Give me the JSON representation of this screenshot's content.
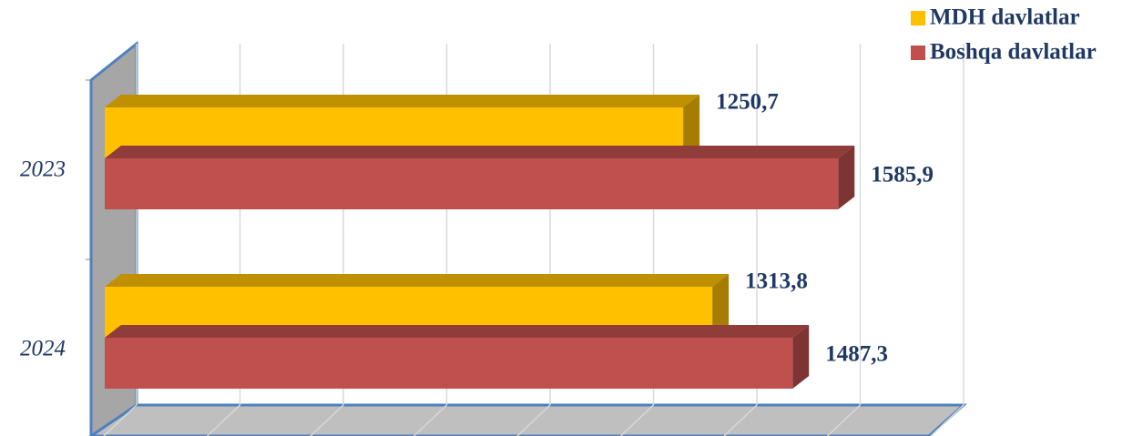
{
  "chart_data": {
    "type": "bar3d_horizontal",
    "categories": [
      "2023",
      "2024"
    ],
    "series": [
      {
        "name": "MDH davlatlar",
        "color": "#ffc000",
        "values": [
          1250.7,
          1313.8
        ],
        "value_labels": [
          "1250,7",
          "1313,8"
        ]
      },
      {
        "name": "Boshqa davlatlar",
        "color": "#c0504d",
        "values": [
          1585.9,
          1487.3
        ],
        "value_labels": [
          "1585,9",
          "1487,3"
        ]
      }
    ],
    "xlim": [
      0,
      1800
    ],
    "xticks": [
      0,
      225,
      450,
      675,
      900,
      1125,
      1350,
      1575,
      1800
    ],
    "grid": true,
    "legend": "top-right"
  }
}
